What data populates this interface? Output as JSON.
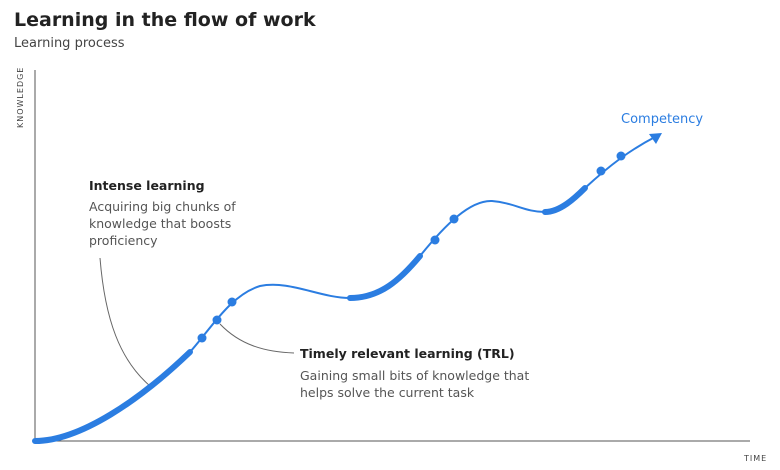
{
  "header": {
    "title": "Learning in the flow of work",
    "subtitle": "Learning process"
  },
  "axes": {
    "y_label": "KNOWLEDGE",
    "x_label": "TIME"
  },
  "annotations": [
    {
      "title": "Intense learning",
      "lines": [
        "Acquiring big chunks of",
        "knowledge that boosts",
        "proficiency"
      ]
    },
    {
      "title": "Timely relevant learning (TRL)",
      "lines": [
        "Gaining small bits of knowledge that",
        "helps solve the current task"
      ]
    }
  ],
  "end_label": "Competency"
}
